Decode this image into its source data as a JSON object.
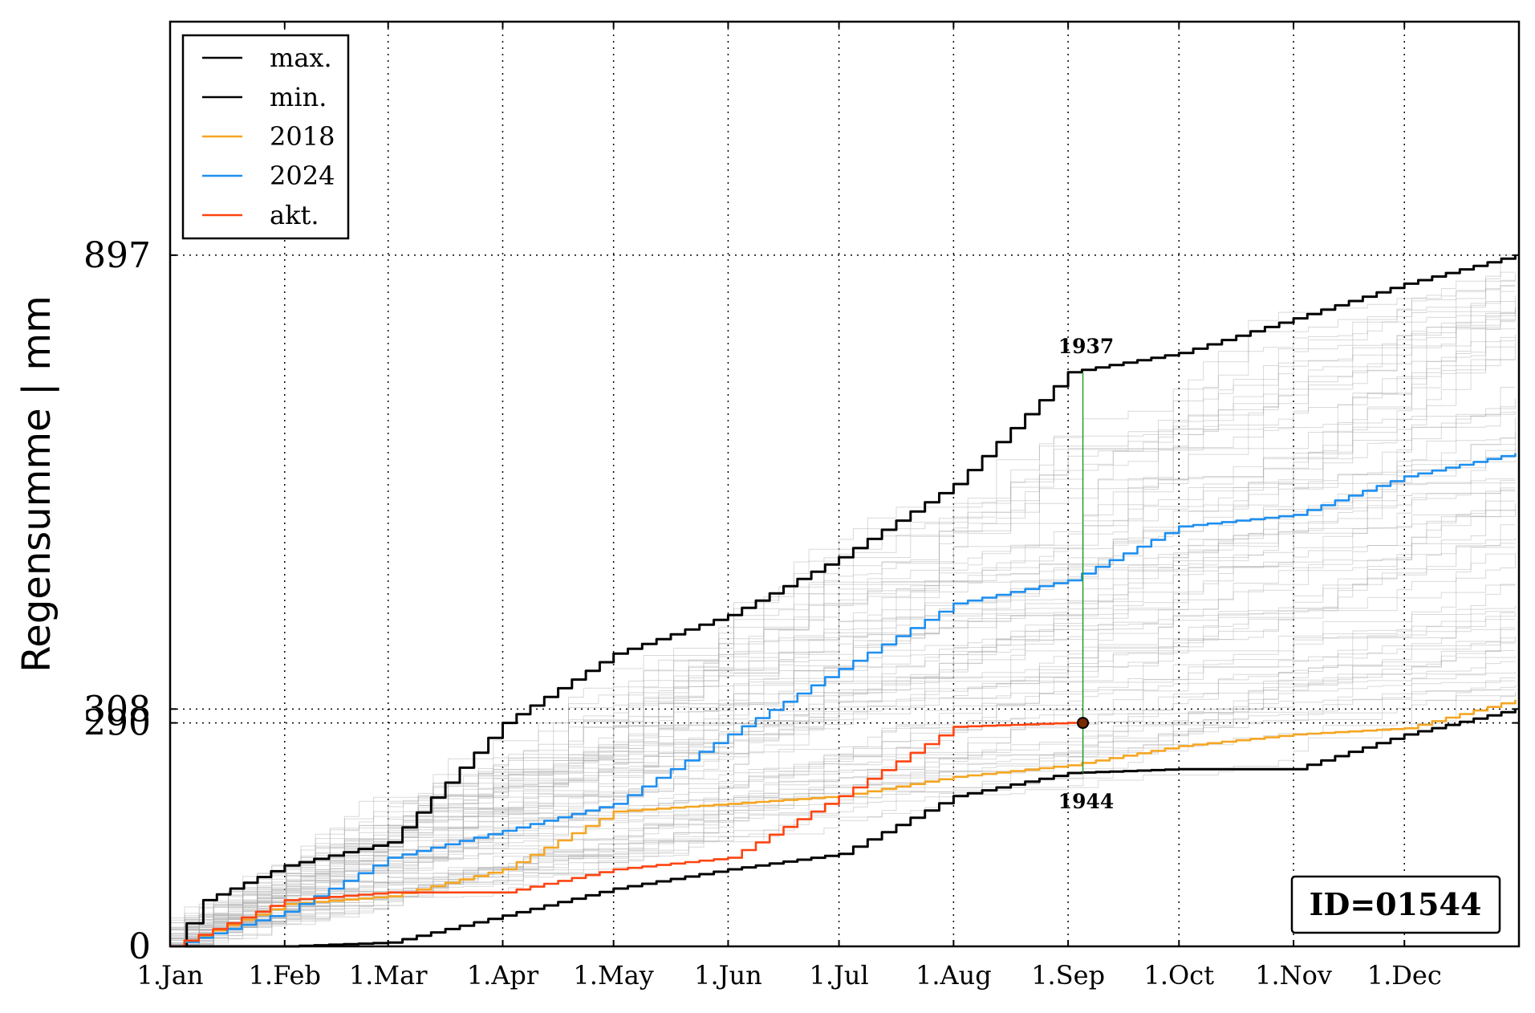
{
  "chart_data": {
    "type": "line",
    "ylabel": "Regensumme | mm",
    "ylim": [
      0,
      1200
    ],
    "xlim": [
      "1.Jan",
      "31.Dec"
    ],
    "x_ticks": [
      "1.Jan",
      "1.Feb",
      "1.Mar",
      "1.Apr",
      "1.May",
      "1.Jun",
      "1.Jul",
      "1.Aug",
      "1.Sep",
      "1.Oct",
      "1.Nov",
      "1.Dec"
    ],
    "y_ticks": [
      0,
      290,
      308,
      897
    ],
    "grid": true,
    "legend_position": "top-left",
    "id_box": "ID=01544",
    "colors": {
      "max": "#000000",
      "min": "#000000",
      "2018": "#f5a623",
      "2024": "#1e8ff0",
      "akt": "#ff4411",
      "background_years": "#aaaaaa",
      "marker_line": "#2a9d2a"
    },
    "series": [
      {
        "name": "max.",
        "x": [
          "1.Jan",
          "10.Jan",
          "1.Feb",
          "1.Mar",
          "1.Apr",
          "1.May",
          "1.Jun",
          "1.Jul",
          "1.Aug",
          "1.Sep",
          "1.Oct",
          "1.Nov",
          "1.Dec",
          "31.Dec"
        ],
        "values": [
          0,
          60,
          105,
          135,
          290,
          380,
          430,
          505,
          600,
          745,
          770,
          815,
          860,
          897
        ]
      },
      {
        "name": "min.",
        "x": [
          "1.Jan",
          "1.Feb",
          "1.Mar",
          "1.Apr",
          "1.May",
          "1.Jun",
          "1.Jul",
          "1.Aug",
          "1.Sep",
          "1.Oct",
          "1.Nov",
          "1.Dec",
          "31.Dec"
        ],
        "values": [
          0,
          0,
          5,
          40,
          75,
          100,
          120,
          195,
          225,
          230,
          230,
          275,
          308
        ]
      },
      {
        "name": "2018",
        "x": [
          "1.Jan",
          "1.Feb",
          "1.Mar",
          "1.Apr",
          "1.May",
          "1.Jun",
          "1.Jul",
          "1.Aug",
          "1.Sep",
          "1.Oct",
          "1.Nov",
          "1.Dec",
          "31.Dec"
        ],
        "values": [
          0,
          55,
          65,
          100,
          175,
          185,
          195,
          220,
          235,
          260,
          275,
          283,
          320
        ]
      },
      {
        "name": "2024",
        "x": [
          "1.Jan",
          "1.Feb",
          "1.Mar",
          "1.Apr",
          "1.May",
          "1.Jun",
          "1.Jul",
          "1.Aug",
          "1.Sep",
          "1.Oct",
          "1.Nov",
          "1.Dec",
          "31.Dec"
        ],
        "values": [
          0,
          45,
          115,
          150,
          185,
          275,
          360,
          445,
          475,
          545,
          560,
          610,
          640
        ]
      },
      {
        "name": "akt.",
        "x": [
          "1.Jan",
          "1.Feb",
          "1.Mar",
          "1.Apr",
          "1.May",
          "1.Jun",
          "1.Jul",
          "1.Aug",
          "1.Sep",
          "5.Sep"
        ],
        "values": [
          0,
          60,
          70,
          70,
          100,
          115,
          195,
          285,
          290,
          290
        ]
      }
    ],
    "annotations": [
      {
        "text": "1937",
        "x": "5.Sep",
        "y": 745
      },
      {
        "text": "1944",
        "x": "5.Sep",
        "y": 225
      }
    ],
    "current_point": {
      "x": "5.Sep",
      "y": 290
    }
  }
}
